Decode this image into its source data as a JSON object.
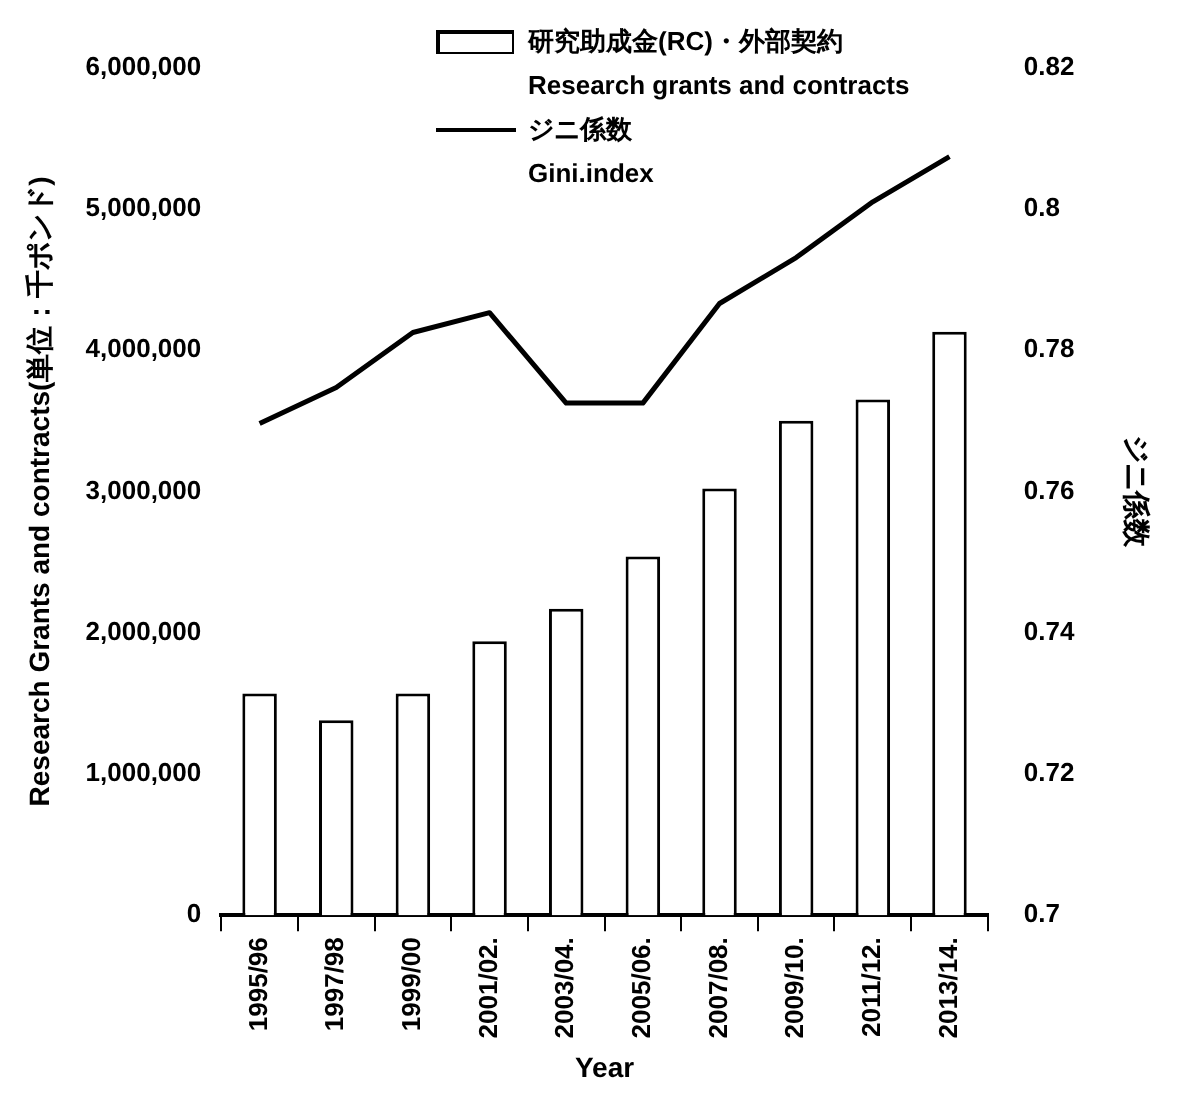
{
  "chart_data": {
    "type": "bar",
    "xlabel": "Year",
    "ylabel": "Research Grants and contracts(単位：千ポンド)",
    "y2label": "ジニ係数",
    "categories": [
      "1995/96",
      "1997/98",
      "1999/00",
      "2001/02.",
      "2003/04.",
      "2005/06.",
      "2007/08.",
      "2009/10.",
      "2011/12.",
      "2013/14."
    ],
    "series": [
      {
        "name": "研究助成金(RC)・外部契約\nResearch grants and contracts",
        "color": "#ffffff",
        "values": [
          1570000,
          1380000,
          1570000,
          1940000,
          2170000,
          2540000,
          3020000,
          3500000,
          3650000,
          4130000
        ]
      },
      {
        "name": "ジニ係数\nGini.index",
        "type": "line",
        "axis": "y2",
        "color": "#000000",
        "values": [
          0.7696,
          0.7747,
          0.7825,
          0.7853,
          0.7725,
          0.7725,
          0.7866,
          0.7931,
          0.801,
          0.8074
        ]
      }
    ],
    "ylim": [
      0,
      6000000
    ],
    "yticks": [
      0,
      {
        "value": 1000000,
        "label": "1,000,000"
      },
      {
        "value": 2000000,
        "label": "2,000,000"
      },
      {
        "value": 3000000,
        "label": "3,000,000"
      },
      {
        "value": 4000000,
        "label": "4,000,000"
      },
      {
        "value": 5000000,
        "label": "5,000,000"
      },
      {
        "value": 6000000,
        "label": "6,000,000"
      }
    ],
    "y2lim": [
      0.7,
      0.82
    ],
    "y2ticks": [
      0.7,
      0.72,
      0.74,
      0.76,
      0.78,
      0.8,
      0.82
    ],
    "legend": "top",
    "marker": "none"
  }
}
